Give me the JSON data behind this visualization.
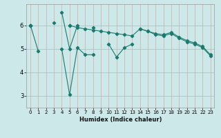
{
  "xlabel": "Humidex (Indice chaleur)",
  "background_color": "#cce8e8",
  "grid_color": "#b0d4d4",
  "line_color": "#1a7a6e",
  "x_ticks": [
    0,
    1,
    2,
    3,
    4,
    5,
    6,
    7,
    8,
    9,
    10,
    11,
    12,
    13,
    14,
    15,
    16,
    17,
    18,
    19,
    20,
    21,
    22,
    23
  ],
  "ylim": [
    2.5,
    6.9
  ],
  "xlim": [
    -0.5,
    23.5
  ],
  "yticks": [
    3,
    4,
    5,
    6
  ],
  "series": [
    [
      6.0,
      4.9,
      null,
      6.1,
      null,
      6.0,
      null,
      null,
      null,
      null,
      null,
      null,
      null,
      null,
      null,
      null,
      null,
      null,
      null,
      null,
      null,
      null,
      null,
      null
    ],
    [
      6.0,
      null,
      null,
      null,
      6.55,
      5.0,
      6.0,
      null,
      5.9,
      null,
      null,
      null,
      null,
      null,
      null,
      null,
      null,
      null,
      null,
      null,
      null,
      null,
      null,
      null
    ],
    [
      6.0,
      null,
      null,
      null,
      5.0,
      3.05,
      5.05,
      4.75,
      4.75,
      null,
      5.2,
      4.65,
      5.05,
      5.2,
      null,
      null,
      null,
      null,
      null,
      null,
      null,
      null,
      null,
      null
    ],
    [
      6.0,
      null,
      null,
      null,
      null,
      6.0,
      5.9,
      5.85,
      5.8,
      5.75,
      5.7,
      5.65,
      5.6,
      5.55,
      5.85,
      5.75,
      5.65,
      5.6,
      5.7,
      5.5,
      5.35,
      5.25,
      5.1,
      4.75
    ],
    [
      6.0,
      null,
      null,
      null,
      null,
      null,
      null,
      null,
      null,
      null,
      null,
      null,
      null,
      null,
      5.85,
      5.75,
      5.6,
      5.55,
      5.65,
      5.45,
      5.3,
      5.2,
      5.05,
      4.7
    ]
  ]
}
